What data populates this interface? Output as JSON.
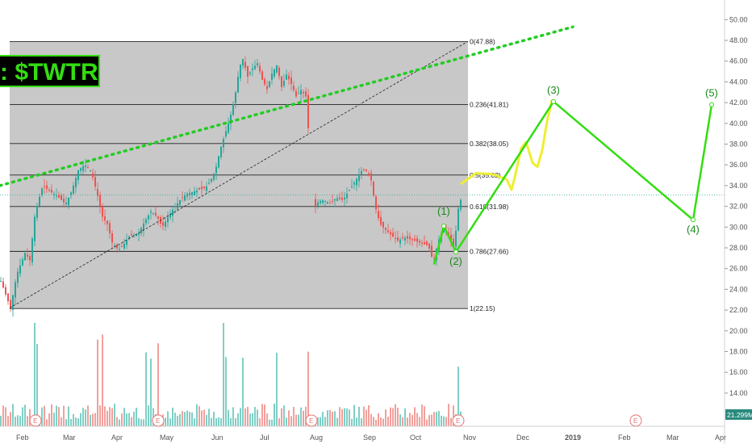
{
  "chart_data": {
    "type": "candlestick",
    "ticker_label": ": $TWTR",
    "price_scale": {
      "ylim": [
        10.7,
        51.5
      ],
      "ticks": [
        "50.00",
        "48.00",
        "46.00",
        "44.00",
        "42.00",
        "40.00",
        "38.00",
        "36.00",
        "34.00",
        "32.00",
        "30.00",
        "28.00",
        "26.00",
        "24.00",
        "22.00",
        "20.00",
        "18.00",
        "16.00",
        "14.00"
      ],
      "tick_values": [
        50,
        48,
        46,
        44,
        42,
        40,
        38,
        36,
        34,
        32,
        30,
        28,
        26,
        24,
        22,
        20,
        18,
        16,
        14
      ],
      "volume_badge": "21.299M"
    },
    "time_axis": {
      "labels": [
        "Feb",
        "Mar",
        "Apr",
        "May",
        "Jun",
        "Jul",
        "Aug",
        "Sep",
        "Oct",
        "Nov",
        "Dec",
        "2019",
        "Feb",
        "Mar",
        "Apr"
      ],
      "positions": [
        28,
        86,
        146,
        206,
        270,
        330,
        392,
        458,
        516,
        582,
        648,
        708,
        774,
        834,
        894
      ]
    },
    "fibonacci": {
      "levels": [
        {
          "label": "0(47.88)",
          "value": 47.88
        },
        {
          "label": "0.236(41.81)",
          "value": 41.81
        },
        {
          "label": "0.382(38.05)",
          "value": 38.05
        },
        {
          "label": "0.5(35.02)",
          "value": 35.02
        },
        {
          "label": "0.618(31.98)",
          "value": 31.98
        },
        {
          "label": "0.786(27.66)",
          "value": 27.66
        },
        {
          "label": "1(22.15)",
          "value": 22.15
        }
      ]
    },
    "current_price": 33.1,
    "earnings_markers": [
      "E",
      "E",
      "E",
      "E",
      "E"
    ],
    "earnings_positions": [
      44,
      196,
      386,
      568,
      788
    ],
    "wave_labels": [
      {
        "label": "(1)",
        "t": 550,
        "v": 30.1
      },
      {
        "label": "(2)",
        "t": 565,
        "v": 27.6
      },
      {
        "label": "(3)",
        "t": 686,
        "v": 42.1
      },
      {
        "label": "(4)",
        "t": 859,
        "v": 30.7
      },
      {
        "label": "(5)",
        "t": 882,
        "v": 41.8
      }
    ],
    "elliott_wave_path": [
      {
        "t": 538,
        "v": 26.4
      },
      {
        "t": 550,
        "v": 30.1
      },
      {
        "t": 565,
        "v": 27.6
      },
      {
        "t": 686,
        "v": 42.1
      },
      {
        "t": 859,
        "v": 30.7
      },
      {
        "t": 882,
        "v": 41.8
      }
    ],
    "trend_line": {
      "from": {
        "t": 0,
        "v": 34.0
      },
      "to": {
        "t": 710,
        "v": 49.3
      }
    },
    "diagonal_line": {
      "from": {
        "t": 12,
        "v": 22.2
      },
      "to": {
        "t": 580,
        "v": 47.9
      }
    },
    "colors": {
      "up": "#26a69a",
      "down": "#ef5350",
      "wave": "#33dd11",
      "trend": "#22cc22",
      "sketch": "#eeee33",
      "shade": "#c8c8c8",
      "price_line": "#26a69a"
    }
  }
}
